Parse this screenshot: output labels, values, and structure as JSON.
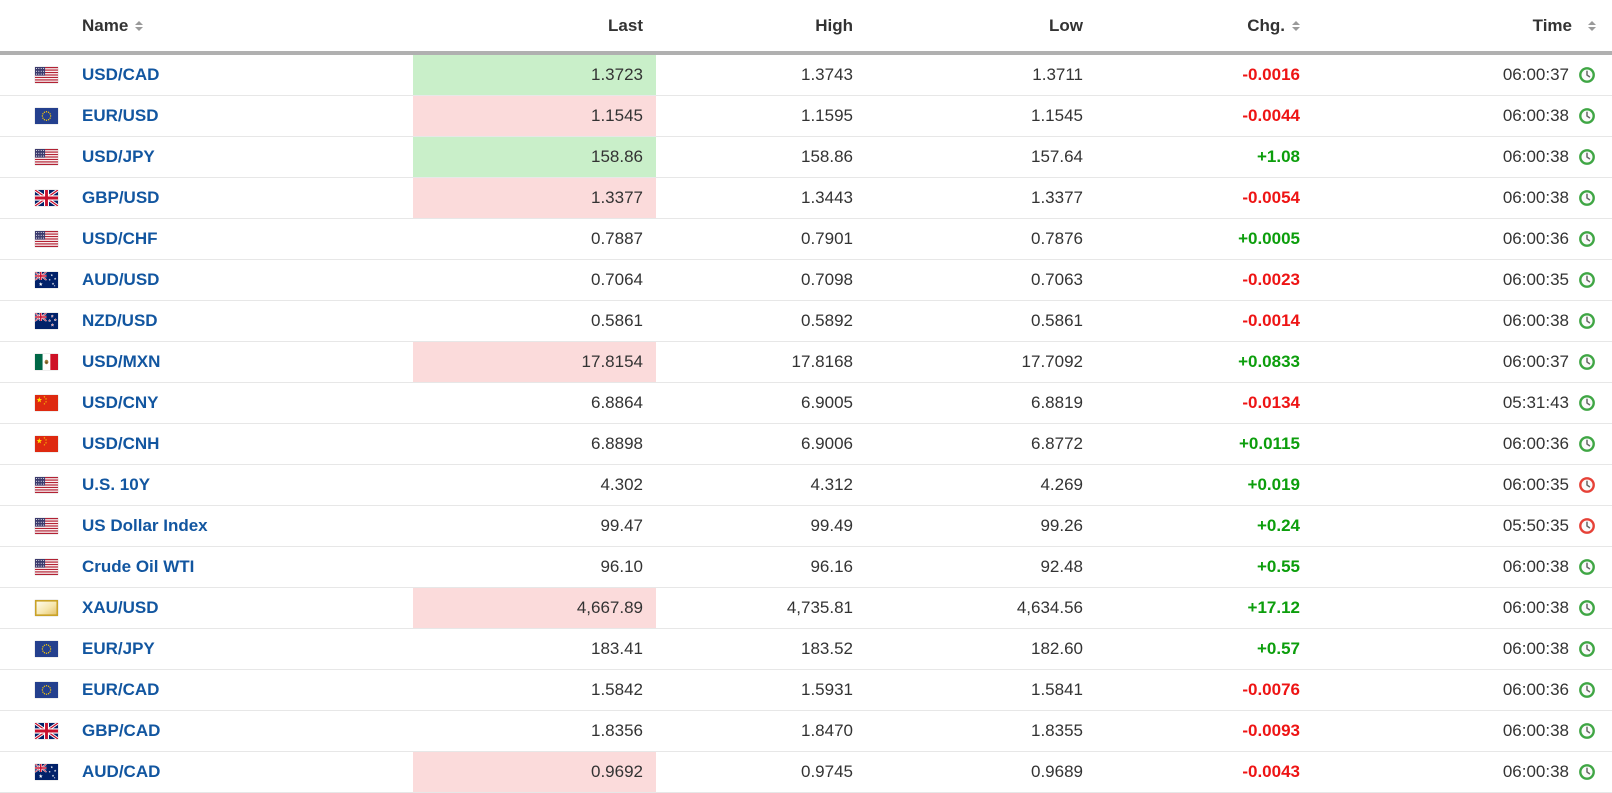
{
  "table": {
    "columns": [
      {
        "label": "Name",
        "sortable": true
      },
      {
        "label": "Last",
        "sortable": false
      },
      {
        "label": "High",
        "sortable": false
      },
      {
        "label": "Low",
        "sortable": false
      },
      {
        "label": "Chg.",
        "sortable": true
      },
      {
        "label": "Time",
        "sortable": true
      }
    ],
    "rows": [
      {
        "flag": "us-flag",
        "name": "USD/CAD",
        "last": "1.3723",
        "last_highlight": "green",
        "high": "1.3743",
        "low": "1.3711",
        "chg": "-0.0016",
        "chg_dir": "down",
        "time": "06:00:37",
        "clock": "green"
      },
      {
        "flag": "eu-flag",
        "name": "EUR/USD",
        "last": "1.1545",
        "last_highlight": "red",
        "high": "1.1595",
        "low": "1.1545",
        "chg": "-0.0044",
        "chg_dir": "down",
        "time": "06:00:38",
        "clock": "green"
      },
      {
        "flag": "us-flag",
        "name": "USD/JPY",
        "last": "158.86",
        "last_highlight": "green",
        "high": "158.86",
        "low": "157.64",
        "chg": "+1.08",
        "chg_dir": "up",
        "time": "06:00:38",
        "clock": "green"
      },
      {
        "flag": "gb-flag",
        "name": "GBP/USD",
        "last": "1.3377",
        "last_highlight": "red",
        "high": "1.3443",
        "low": "1.3377",
        "chg": "-0.0054",
        "chg_dir": "down",
        "time": "06:00:38",
        "clock": "green"
      },
      {
        "flag": "us-flag",
        "name": "USD/CHF",
        "last": "0.7887",
        "last_highlight": "none",
        "high": "0.7901",
        "low": "0.7876",
        "chg": "+0.0005",
        "chg_dir": "up",
        "time": "06:00:36",
        "clock": "green"
      },
      {
        "flag": "au-flag",
        "name": "AUD/USD",
        "last": "0.7064",
        "last_highlight": "none",
        "high": "0.7098",
        "low": "0.7063",
        "chg": "-0.0023",
        "chg_dir": "down",
        "time": "06:00:35",
        "clock": "green"
      },
      {
        "flag": "nz-flag",
        "name": "NZD/USD",
        "last": "0.5861",
        "last_highlight": "none",
        "high": "0.5892",
        "low": "0.5861",
        "chg": "-0.0014",
        "chg_dir": "down",
        "time": "06:00:38",
        "clock": "green"
      },
      {
        "flag": "mx-flag",
        "name": "USD/MXN",
        "last": "17.8154",
        "last_highlight": "red",
        "high": "17.8168",
        "low": "17.7092",
        "chg": "+0.0833",
        "chg_dir": "up",
        "time": "06:00:37",
        "clock": "green"
      },
      {
        "flag": "cn-flag",
        "name": "USD/CNY",
        "last": "6.8864",
        "last_highlight": "none",
        "high": "6.9005",
        "low": "6.8819",
        "chg": "-0.0134",
        "chg_dir": "down",
        "time": "05:31:43",
        "clock": "green"
      },
      {
        "flag": "cn-flag",
        "name": "USD/CNH",
        "last": "6.8898",
        "last_highlight": "none",
        "high": "6.9006",
        "low": "6.8772",
        "chg": "+0.0115",
        "chg_dir": "up",
        "time": "06:00:36",
        "clock": "green"
      },
      {
        "flag": "us-flag",
        "name": "U.S. 10Y",
        "last": "4.302",
        "last_highlight": "none",
        "high": "4.312",
        "low": "4.269",
        "chg": "+0.019",
        "chg_dir": "up",
        "time": "06:00:35",
        "clock": "red"
      },
      {
        "flag": "us-flag",
        "name": "US Dollar Index",
        "last": "99.47",
        "last_highlight": "none",
        "high": "99.49",
        "low": "99.26",
        "chg": "+0.24",
        "chg_dir": "up",
        "time": "05:50:35",
        "clock": "red"
      },
      {
        "flag": "us-flag",
        "name": "Crude Oil WTI",
        "last": "96.10",
        "last_highlight": "none",
        "high": "96.16",
        "low": "92.48",
        "chg": "+0.55",
        "chg_dir": "up",
        "time": "06:00:38",
        "clock": "green"
      },
      {
        "flag": "gold-icon",
        "name": "XAU/USD",
        "last": "4,667.89",
        "last_highlight": "red",
        "high": "4,735.81",
        "low": "4,634.56",
        "chg": "+17.12",
        "chg_dir": "up",
        "time": "06:00:38",
        "clock": "green"
      },
      {
        "flag": "eu-flag",
        "name": "EUR/JPY",
        "last": "183.41",
        "last_highlight": "none",
        "high": "183.52",
        "low": "182.60",
        "chg": "+0.57",
        "chg_dir": "up",
        "time": "06:00:38",
        "clock": "green"
      },
      {
        "flag": "eu-flag",
        "name": "EUR/CAD",
        "last": "1.5842",
        "last_highlight": "none",
        "high": "1.5931",
        "low": "1.5841",
        "chg": "-0.0076",
        "chg_dir": "down",
        "time": "06:00:36",
        "clock": "green"
      },
      {
        "flag": "gb-flag",
        "name": "GBP/CAD",
        "last": "1.8356",
        "last_highlight": "none",
        "high": "1.8470",
        "low": "1.8355",
        "chg": "-0.0093",
        "chg_dir": "down",
        "time": "06:00:38",
        "clock": "green"
      },
      {
        "flag": "au-flag",
        "name": "AUD/CAD",
        "last": "0.9692",
        "last_highlight": "red",
        "high": "0.9745",
        "low": "0.9689",
        "chg": "-0.0043",
        "chg_dir": "down",
        "time": "06:00:38",
        "clock": "green"
      }
    ]
  },
  "colors": {
    "positive": "#0C9E0C",
    "negative": "#EE1414",
    "highlight_green": "#C9EFC9",
    "highlight_red": "#FBDBDB",
    "link_blue": "#1256A0",
    "clock_green": "#3FA644",
    "clock_red": "#E64137",
    "header_border": "#B0B0B0",
    "row_border": "#E7E7E7"
  }
}
